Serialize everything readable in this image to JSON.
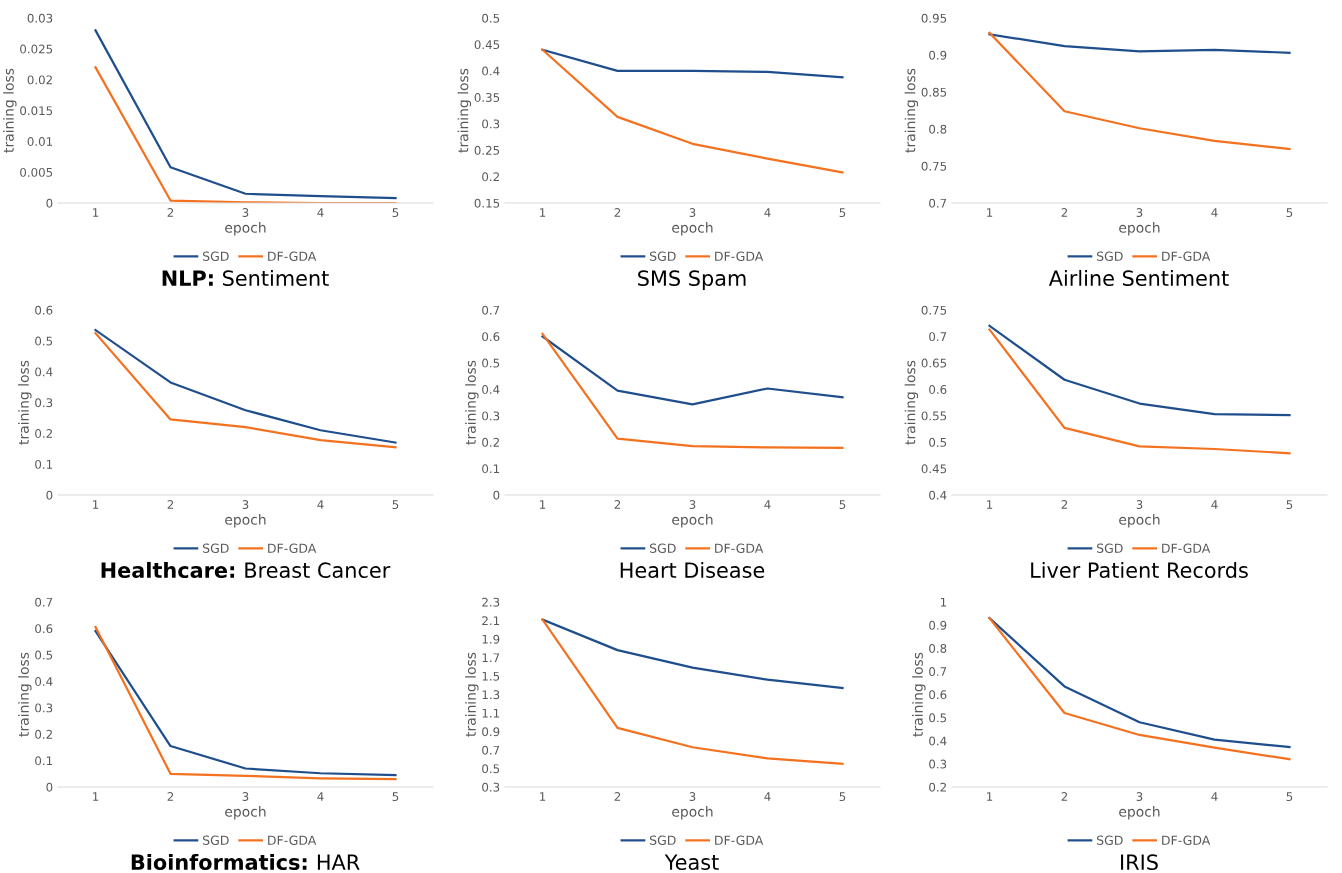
{
  "chart_data": [
    {
      "type": "line",
      "title": "NLP: Sentiment",
      "xlabel": "epoch",
      "ylabel": "training loss",
      "categories": [
        "1",
        "2",
        "3",
        "4",
        "5"
      ],
      "ylim": [
        0,
        0.03
      ],
      "yticks": [
        0,
        0.005,
        0.01,
        0.015,
        0.02,
        0.025,
        0.03
      ],
      "legend": "bottom",
      "grid": false,
      "series": [
        {
          "name": "SGD",
          "color": "#1f4e8c",
          "values": [
            0.028,
            0.0058,
            0.0015,
            0.0011,
            0.0008
          ]
        },
        {
          "name": "DF-GDA",
          "color": "#f4711f",
          "values": [
            0.022,
            0.0004,
            0.0001,
            0,
            0
          ]
        }
      ]
    },
    {
      "type": "line",
      "title": "SMS Spam",
      "xlabel": "epoch",
      "ylabel": "training loss",
      "categories": [
        "1",
        "2",
        "3",
        "4",
        "5"
      ],
      "ylim": [
        0.15,
        0.5
      ],
      "yticks": [
        0.15,
        0.2,
        0.25,
        0.3,
        0.35,
        0.4,
        0.45,
        0.5
      ],
      "legend": "bottom",
      "grid": false,
      "series": [
        {
          "name": "SGD",
          "color": "#1f4e8c",
          "values": [
            0.44,
            0.4,
            0.4,
            0.398,
            0.388
          ]
        },
        {
          "name": "DF-GDA",
          "color": "#f4711f",
          "values": [
            0.44,
            0.313,
            0.262,
            0.234,
            0.208
          ]
        }
      ]
    },
    {
      "type": "line",
      "title": "Airline Sentiment",
      "xlabel": "epoch",
      "ylabel": "training loss",
      "categories": [
        "1",
        "2",
        "3",
        "4",
        "5"
      ],
      "ylim": [
        0.7,
        0.95
      ],
      "yticks": [
        0.7,
        0.75,
        0.8,
        0.85,
        0.9,
        0.95
      ],
      "legend": "bottom",
      "grid": false,
      "series": [
        {
          "name": "SGD",
          "color": "#1f4e8c",
          "values": [
            0.928,
            0.912,
            0.905,
            0.907,
            0.903
          ]
        },
        {
          "name": "DF-GDA",
          "color": "#f4711f",
          "values": [
            0.93,
            0.824,
            0.801,
            0.784,
            0.773
          ]
        }
      ]
    },
    {
      "type": "line",
      "title": "Healthcare: Breast Cancer",
      "xlabel": "epoch",
      "ylabel": "training loss",
      "categories": [
        "1",
        "2",
        "3",
        "4",
        "5"
      ],
      "ylim": [
        0,
        0.6
      ],
      "yticks": [
        0,
        0.1,
        0.2,
        0.3,
        0.4,
        0.5,
        0.6
      ],
      "legend": "bottom",
      "grid": false,
      "series": [
        {
          "name": "SGD",
          "color": "#1f4e8c",
          "values": [
            0.535,
            0.365,
            0.275,
            0.21,
            0.17
          ]
        },
        {
          "name": "DF-GDA",
          "color": "#f4711f",
          "values": [
            0.525,
            0.245,
            0.22,
            0.178,
            0.155
          ]
        }
      ]
    },
    {
      "type": "line",
      "title": "Heart Disease",
      "xlabel": "epoch",
      "ylabel": "training loss",
      "categories": [
        "1",
        "2",
        "3",
        "4",
        "5"
      ],
      "ylim": [
        0,
        0.7
      ],
      "yticks": [
        0,
        0.1,
        0.2,
        0.3,
        0.4,
        0.5,
        0.6,
        0.7
      ],
      "legend": "bottom",
      "grid": false,
      "series": [
        {
          "name": "SGD",
          "color": "#1f4e8c",
          "values": [
            0.6,
            0.395,
            0.343,
            0.403,
            0.37
          ]
        },
        {
          "name": "DF-GDA",
          "color": "#f4711f",
          "values": [
            0.61,
            0.213,
            0.185,
            0.18,
            0.178
          ]
        }
      ]
    },
    {
      "type": "line",
      "title": "Liver Patient Records",
      "xlabel": "epoch",
      "ylabel": "training loss",
      "categories": [
        "1",
        "2",
        "3",
        "4",
        "5"
      ],
      "ylim": [
        0.4,
        0.75
      ],
      "yticks": [
        0.4,
        0.45,
        0.5,
        0.55,
        0.6,
        0.65,
        0.7,
        0.75
      ],
      "legend": "bottom",
      "grid": false,
      "series": [
        {
          "name": "SGD",
          "color": "#1f4e8c",
          "values": [
            0.72,
            0.618,
            0.573,
            0.553,
            0.551
          ]
        },
        {
          "name": "DF-GDA",
          "color": "#f4711f",
          "values": [
            0.713,
            0.527,
            0.492,
            0.487,
            0.479
          ]
        }
      ]
    },
    {
      "type": "line",
      "title": "Bioinformatics: HAR",
      "xlabel": "epoch",
      "ylabel": "training loss",
      "categories": [
        "1",
        "2",
        "3",
        "4",
        "5"
      ],
      "ylim": [
        0,
        0.7
      ],
      "yticks": [
        0,
        0.1,
        0.2,
        0.3,
        0.4,
        0.5,
        0.6,
        0.7
      ],
      "legend": "bottom",
      "grid": false,
      "series": [
        {
          "name": "SGD",
          "color": "#1f4e8c",
          "values": [
            0.59,
            0.155,
            0.07,
            0.052,
            0.045
          ]
        },
        {
          "name": "DF-GDA",
          "color": "#f4711f",
          "values": [
            0.605,
            0.05,
            0.042,
            0.033,
            0.03
          ]
        }
      ]
    },
    {
      "type": "line",
      "title": "Yeast",
      "xlabel": "epoch",
      "ylabel": "training loss",
      "categories": [
        "1",
        "2",
        "3",
        "4",
        "5"
      ],
      "ylim": [
        0.3,
        2.3
      ],
      "yticks": [
        0.3,
        0.5,
        0.7,
        0.9,
        1.1,
        1.3,
        1.5,
        1.7,
        1.9,
        2.1,
        2.3
      ],
      "legend": "bottom",
      "grid": false,
      "series": [
        {
          "name": "SGD",
          "color": "#1f4e8c",
          "values": [
            2.11,
            1.78,
            1.59,
            1.46,
            1.37
          ]
        },
        {
          "name": "DF-GDA",
          "color": "#f4711f",
          "values": [
            2.11,
            0.94,
            0.73,
            0.61,
            0.55
          ]
        }
      ]
    },
    {
      "type": "line",
      "title": "IRIS",
      "xlabel": "epoch",
      "ylabel": "training loss",
      "categories": [
        "1",
        "2",
        "3",
        "4",
        "5"
      ],
      "ylim": [
        0.2,
        1
      ],
      "yticks": [
        0.2,
        0.3,
        0.4,
        0.5,
        0.6,
        0.7,
        0.8,
        0.9,
        1
      ],
      "legend": "bottom",
      "grid": false,
      "series": [
        {
          "name": "SGD",
          "color": "#1f4e8c",
          "values": [
            0.93,
            0.635,
            0.48,
            0.405,
            0.373
          ]
        },
        {
          "name": "DF-GDA",
          "color": "#f4711f",
          "values": [
            0.93,
            0.52,
            0.425,
            0.37,
            0.32
          ]
        }
      ]
    }
  ]
}
